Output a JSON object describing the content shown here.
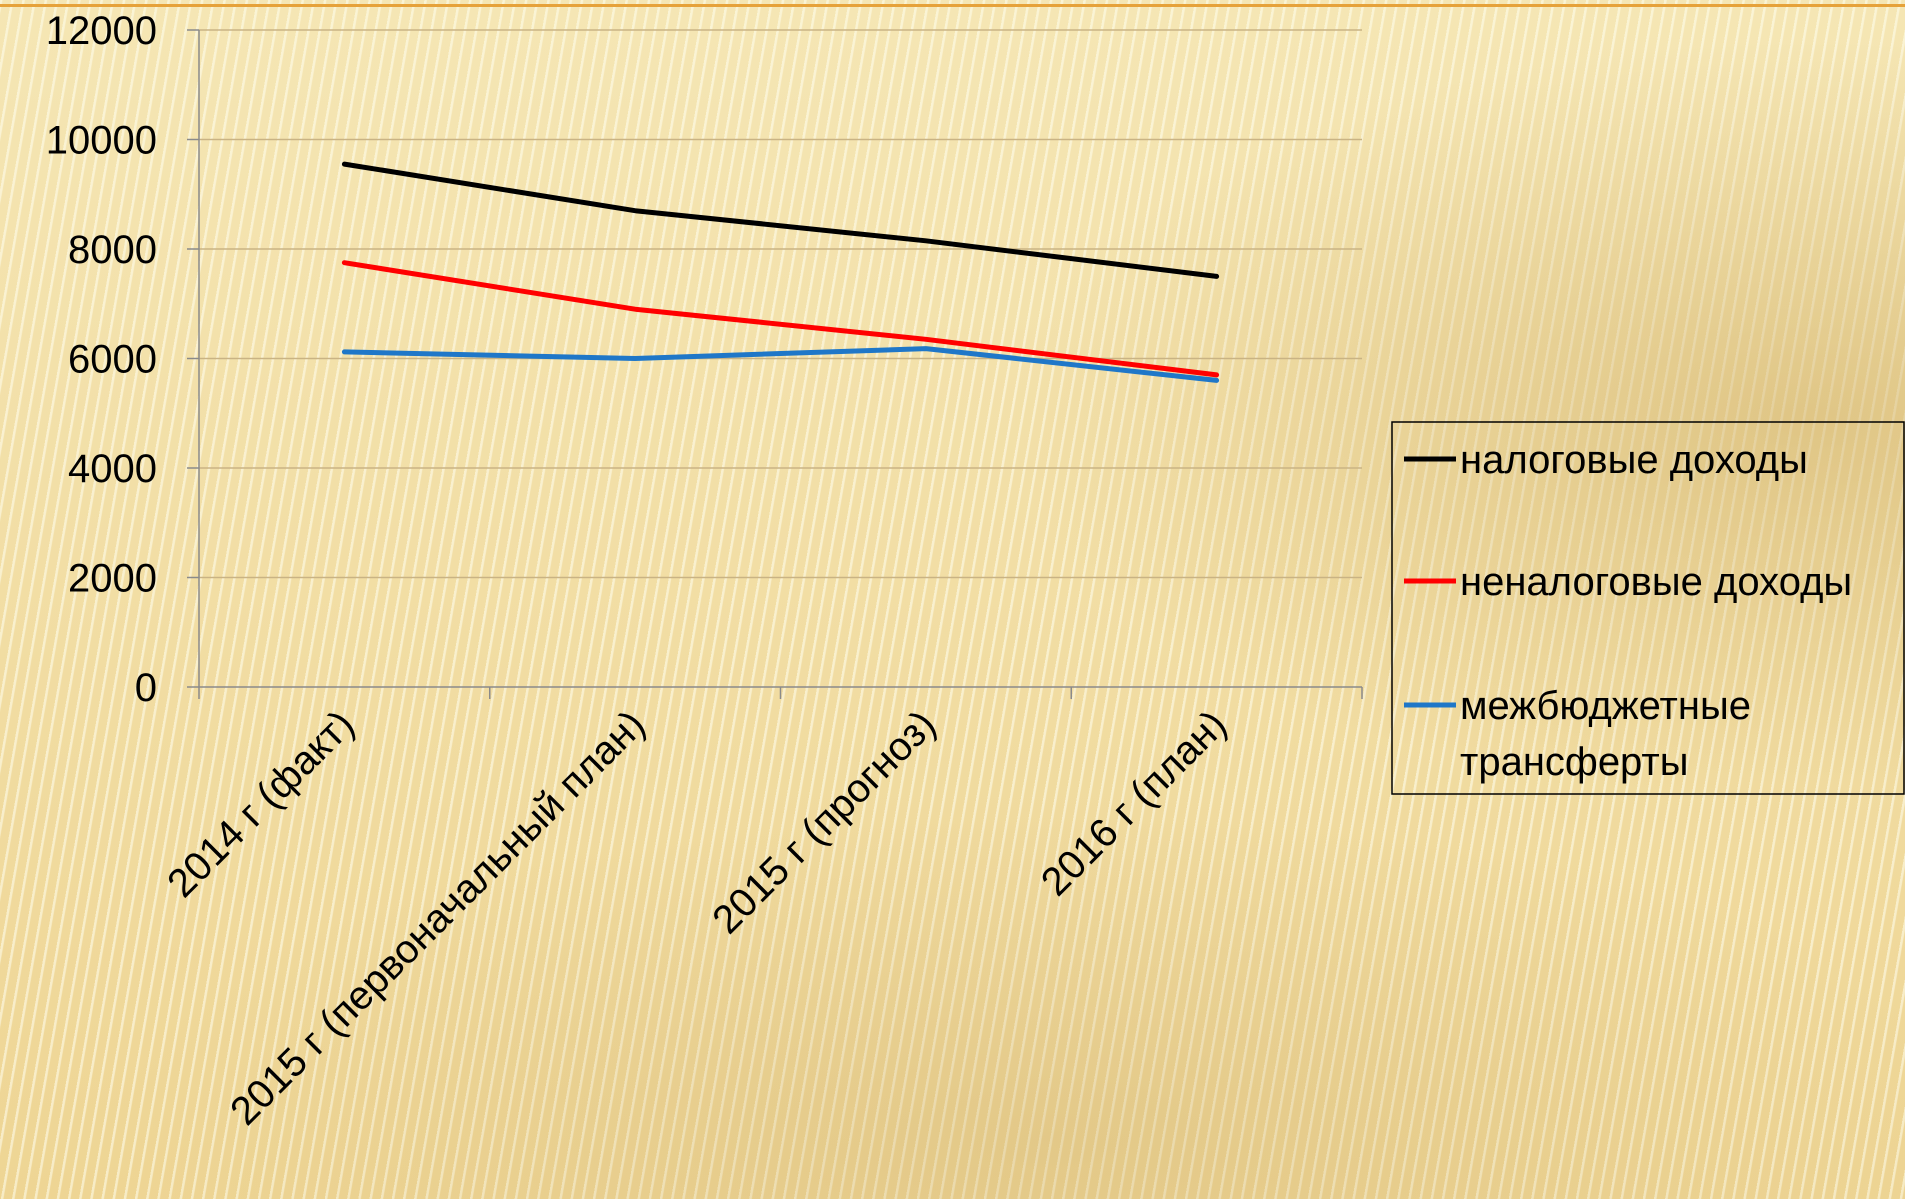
{
  "chart_data": {
    "type": "line",
    "categories": [
      "2014 г (факт)",
      "2015 г (первоначальный план)",
      "2015 г (прогноз)",
      "2016 г (план)"
    ],
    "series": [
      {
        "name": "налоговые доходы",
        "color": "#000000",
        "values": [
          9550,
          8700,
          8150,
          7500
        ]
      },
      {
        "name": "неналоговые доходы",
        "color": "#ff0000",
        "values": [
          7750,
          6900,
          6350,
          5700
        ]
      },
      {
        "name": "межбюджетные трансферты",
        "color": "#1f77c8",
        "values": [
          6120,
          6000,
          6180,
          5600
        ]
      }
    ],
    "y_ticks": [
      "0",
      "2000",
      "4000",
      "6000",
      "8000",
      "10000",
      "12000"
    ],
    "ylim": [
      0,
      12000
    ],
    "grid": true,
    "legend": "right"
  },
  "legend_lines": [
    [
      "налоговые доходы"
    ],
    [
      "неналоговые доходы"
    ],
    [
      "межбюджетные",
      "трансферты"
    ]
  ],
  "colors": {
    "accent_rule": "#e6a23a",
    "grid": "#c9b384",
    "axis": "#8a8a8a"
  }
}
